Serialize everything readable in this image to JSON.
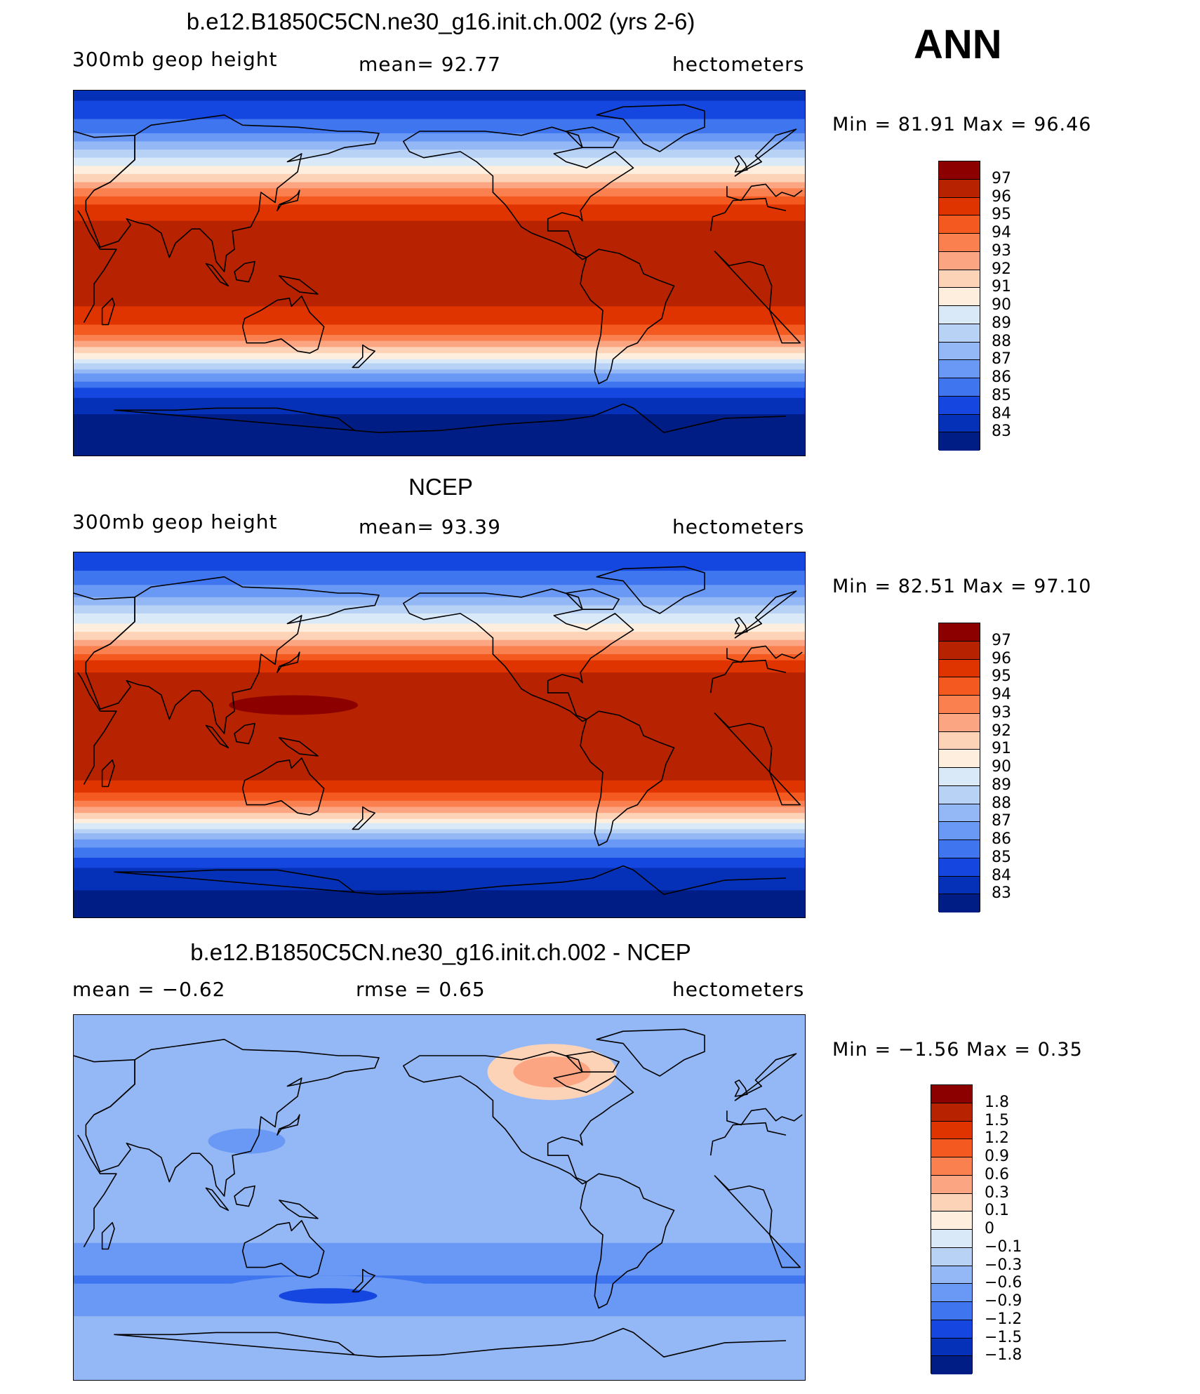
{
  "season": "ANN",
  "panels": [
    {
      "title": "b.e12.B1850C5CN.ne30_g16.init.ch.002 (yrs 2-6)",
      "variable": "300mb geop height",
      "stat": "mean=   92.77",
      "units": "hectometers",
      "minmax": "Min =   81.91  Max =   96.46"
    },
    {
      "title": "NCEP",
      "variable": "300mb geop height",
      "stat": "mean=   93.39",
      "units": "hectometers",
      "minmax": "Min =   82.51  Max =   97.10"
    },
    {
      "title": "b.e12.B1850C5CN.ne30_g16.init.ch.002 - NCEP",
      "variable": "mean =   −0.62",
      "stat": "rmse =    0.65",
      "units": "hectometers",
      "minmax": "Min =   −1.56  Max =    0.35"
    }
  ],
  "chart_data": [
    {
      "type": "heatmap",
      "title": "b.e12.B1850C5CN.ne30_g16.init.ch.002 (yrs 2-6)",
      "field": "300mb geop height",
      "units": "hectometers",
      "mean": 92.77,
      "min": 81.91,
      "max": 96.46,
      "zonal_profile": {
        "lat": [
          90,
          80,
          70,
          60,
          55,
          50,
          45,
          40,
          35,
          30,
          20,
          10,
          0,
          -10,
          -20,
          -25,
          -30,
          -35,
          -40,
          -45,
          -50,
          -55,
          -60,
          -65,
          -70,
          -80,
          -90
        ],
        "value": [
          83.6,
          84.4,
          85.8,
          88.2,
          89.4,
          90.6,
          92.0,
          93.5,
          94.9,
          95.8,
          96.3,
          96.4,
          96.4,
          96.3,
          95.8,
          95.0,
          93.9,
          92.4,
          90.6,
          88.7,
          86.8,
          85.3,
          84.2,
          83.5,
          82.9,
          82.3,
          81.9
        ]
      }
    },
    {
      "type": "heatmap",
      "title": "NCEP",
      "field": "300mb geop height",
      "units": "hectometers",
      "mean": 93.39,
      "min": 82.51,
      "max": 97.1,
      "zonal_profile": {
        "lat": [
          90,
          80,
          70,
          60,
          55,
          50,
          45,
          40,
          35,
          30,
          20,
          10,
          0,
          -10,
          -20,
          -25,
          -30,
          -35,
          -40,
          -45,
          -50,
          -55,
          -60,
          -65,
          -70,
          -80,
          -90
        ],
        "value": [
          84.3,
          85.1,
          86.5,
          88.9,
          90.1,
          91.3,
          92.6,
          94.1,
          95.4,
          96.2,
          96.7,
          96.9,
          96.9,
          96.8,
          96.3,
          95.6,
          94.5,
          93.0,
          91.2,
          89.3,
          87.4,
          86.0,
          84.9,
          84.0,
          83.3,
          82.8,
          82.5
        ]
      }
    },
    {
      "type": "heatmap",
      "title": "b.e12.B1850C5CN.ne30_g16.init.ch.002 - NCEP",
      "field": "difference",
      "units": "hectometers",
      "mean": -0.62,
      "rmse": 0.65,
      "min": -1.56,
      "max": 0.35,
      "zonal_profile": {
        "lat": [
          90,
          80,
          70,
          60,
          50,
          40,
          30,
          20,
          10,
          0,
          -10,
          -20,
          -30,
          -40,
          -50,
          -60,
          -70,
          -80,
          -90
        ],
        "value": [
          -0.35,
          -0.45,
          -0.4,
          -0.55,
          -0.5,
          -0.55,
          -0.55,
          -0.55,
          -0.55,
          -0.6,
          -0.6,
          -0.55,
          -0.75,
          -0.95,
          -0.75,
          -0.55,
          -0.5,
          -0.45,
          -0.45
        ]
      }
    }
  ],
  "colorbars": [
    {
      "labels": [
        "97",
        "96",
        "95",
        "94",
        "93",
        "92",
        "91",
        "90",
        "89",
        "88",
        "87",
        "86",
        "85",
        "84",
        "83"
      ],
      "colors": [
        "#8c0000",
        "#b72200",
        "#df3400",
        "#f45a20",
        "#fb8050",
        "#fca582",
        "#fdd3b8",
        "#fdeede",
        "#d9e9f8",
        "#b8d2f6",
        "#94b8f5",
        "#6999f4",
        "#3f76ef",
        "#1547e0",
        "#0531b8",
        "#001c85"
      ]
    },
    {
      "labels": [
        "97",
        "96",
        "95",
        "94",
        "93",
        "92",
        "91",
        "90",
        "89",
        "88",
        "87",
        "86",
        "85",
        "84",
        "83"
      ],
      "colors": [
        "#8c0000",
        "#b72200",
        "#df3400",
        "#f45a20",
        "#fb8050",
        "#fca582",
        "#fdd3b8",
        "#fdeede",
        "#d9e9f8",
        "#b8d2f6",
        "#94b8f5",
        "#6999f4",
        "#3f76ef",
        "#1547e0",
        "#0531b8",
        "#001c85"
      ]
    },
    {
      "labels": [
        "1.8",
        "1.5",
        "1.2",
        "0.9",
        "0.6",
        "0.3",
        "0.1",
        "0",
        "−0.1",
        "−0.3",
        "−0.6",
        "−0.9",
        "−1.2",
        "−1.5",
        "−1.8"
      ],
      "colors": [
        "#8c0000",
        "#b72200",
        "#df3400",
        "#f45a20",
        "#fb8050",
        "#fca582",
        "#fdd3b8",
        "#fdeede",
        "#d9e9f8",
        "#b8d2f6",
        "#94b8f5",
        "#6999f4",
        "#3f76ef",
        "#1547e0",
        "#0531b8",
        "#001c85"
      ]
    }
  ]
}
